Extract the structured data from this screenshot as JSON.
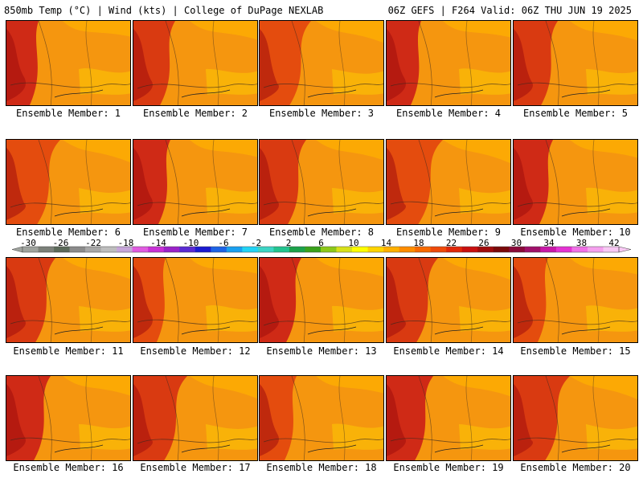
{
  "header": {
    "left_title": "850mb Temp (°C) | Wind (kts) | College of DuPage NEXLAB",
    "right_title": "06Z GEFS | F264 Valid: 06Z THU JUN 19 2025"
  },
  "members": [
    {
      "label": "Ensemble Member: 1"
    },
    {
      "label": "Ensemble Member: 2"
    },
    {
      "label": "Ensemble Member: 3"
    },
    {
      "label": "Ensemble Member: 4"
    },
    {
      "label": "Ensemble Member: 5"
    },
    {
      "label": "Ensemble Member: 6"
    },
    {
      "label": "Ensemble Member: 7"
    },
    {
      "label": "Ensemble Member: 8"
    },
    {
      "label": "Ensemble Member: 9"
    },
    {
      "label": "Ensemble Member: 10"
    },
    {
      "label": "Ensemble Member: 11"
    },
    {
      "label": "Ensemble Member: 12"
    },
    {
      "label": "Ensemble Member: 13"
    },
    {
      "label": "Ensemble Member: 14"
    },
    {
      "label": "Ensemble Member: 15"
    },
    {
      "label": "Ensemble Member: 16"
    },
    {
      "label": "Ensemble Member: 17"
    },
    {
      "label": "Ensemble Member: 18"
    },
    {
      "label": "Ensemble Member: 19"
    },
    {
      "label": "Ensemble Member: 20"
    }
  ],
  "colorbar": {
    "labels": [
      "-30",
      "-26",
      "-22",
      "-18",
      "-14",
      "-10",
      "-6",
      "-2",
      "2",
      "6",
      "10",
      "14",
      "18",
      "22",
      "26",
      "30",
      "34",
      "38",
      "42"
    ],
    "colors": [
      "#9fa39e",
      "#7b8079",
      "#5c6a5a",
      "#8b8b8b",
      "#a7a7a7",
      "#bdbdbd",
      "#c6a6d9",
      "#e05be0",
      "#c831d6",
      "#9a22c8",
      "#5a2ad2",
      "#1b1bd0",
      "#1e64e6",
      "#1aa0f0",
      "#22d3f5",
      "#3dd4c4",
      "#23c38f",
      "#1ca24b",
      "#3aa21c",
      "#8cc81a",
      "#d8e11a",
      "#ffff00",
      "#ffd400",
      "#ffb000",
      "#ff8c00",
      "#f86a00",
      "#ee4a0a",
      "#e0280a",
      "#c81010",
      "#a00c0c",
      "#7a0a0a",
      "#8a0a3a",
      "#a0106a",
      "#c818a8",
      "#e432d2",
      "#f070e6",
      "#f5a0ee",
      "#f8c8f4"
    ]
  }
}
